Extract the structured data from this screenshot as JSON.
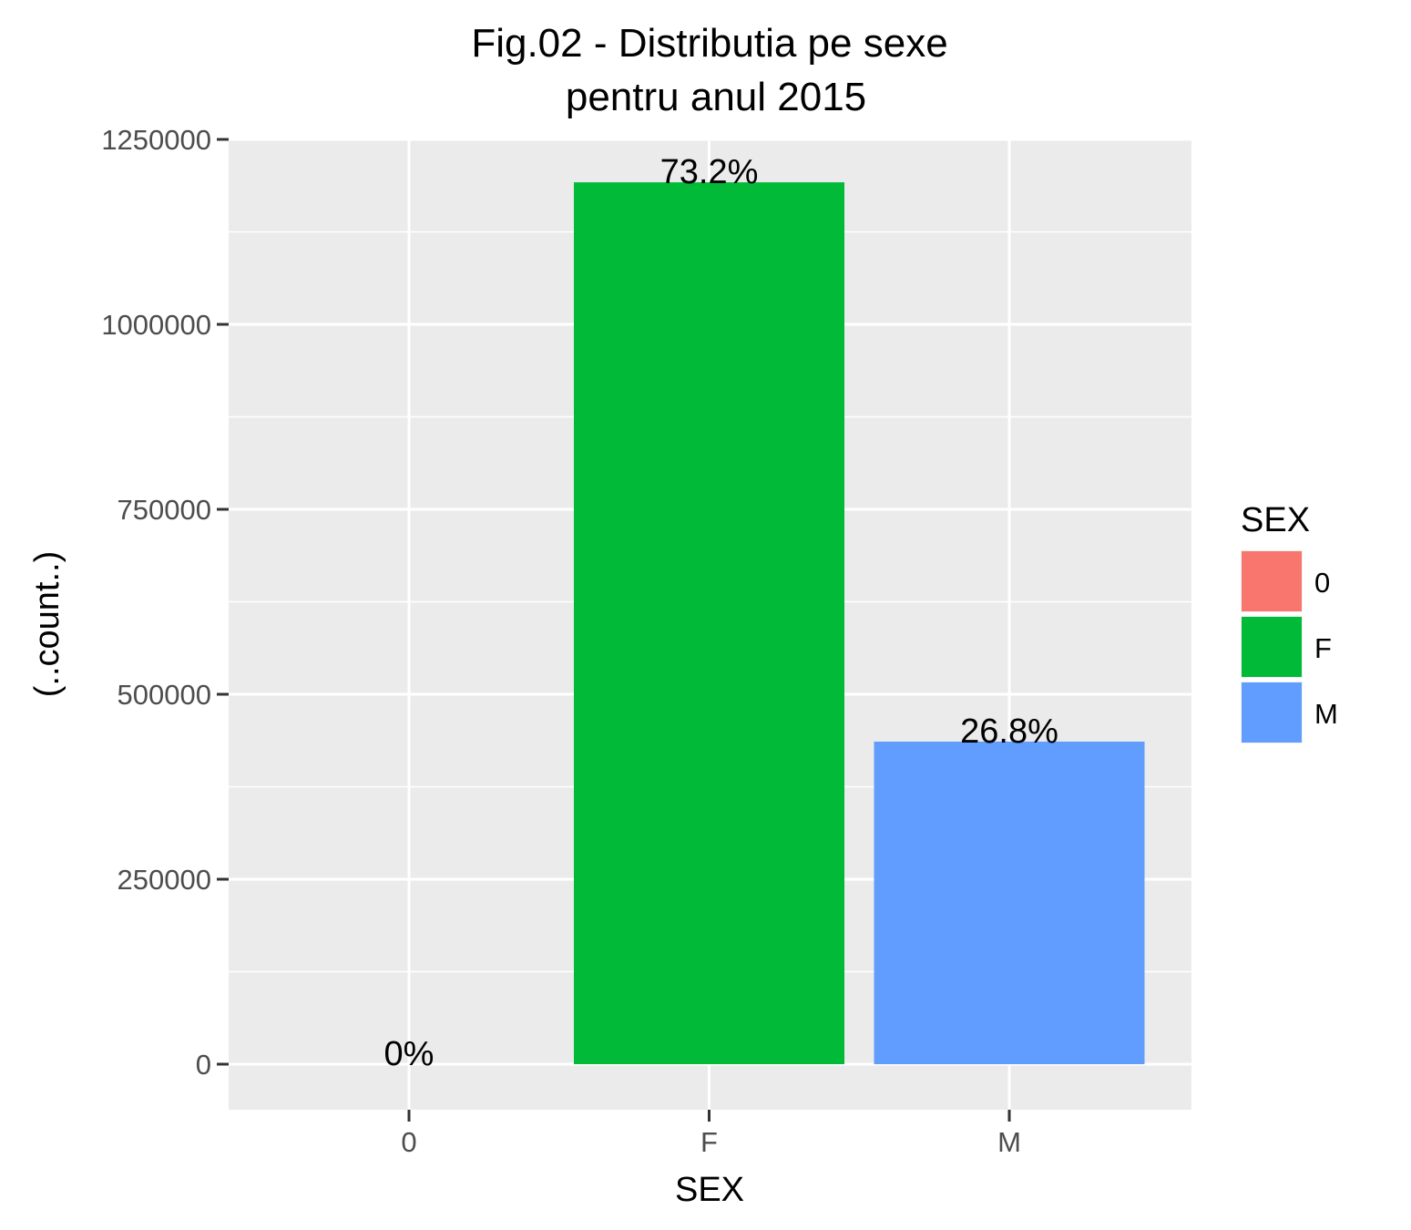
{
  "chart_data": {
    "type": "bar",
    "title": "Fig.02 - Distributia pe sexe",
    "subtitle": "pentru anul 2015",
    "xlabel": "SEX",
    "ylabel": "(..count..)",
    "categories": [
      "0",
      "F",
      "M"
    ],
    "values": [
      0,
      1192000,
      436000
    ],
    "data_labels": [
      "0%",
      "73.2%",
      "26.8%"
    ],
    "colors": [
      "#F8766D",
      "#00BA38",
      "#619CFF"
    ],
    "ylim": [
      -60000,
      1250000
    ],
    "yticks": [
      0,
      250000,
      500000,
      750000,
      1000000,
      1250000
    ],
    "ytick_labels": [
      "0",
      "250000",
      "500000",
      "750000",
      "1000000",
      "1250000"
    ],
    "grid": true,
    "panel_background": "#EBEBEB",
    "legend": {
      "title": "SEX",
      "position": "right",
      "entries": [
        {
          "label": "0",
          "color": "#F8766D"
        },
        {
          "label": "F",
          "color": "#00BA38"
        },
        {
          "label": "M",
          "color": "#619CFF"
        }
      ]
    }
  }
}
